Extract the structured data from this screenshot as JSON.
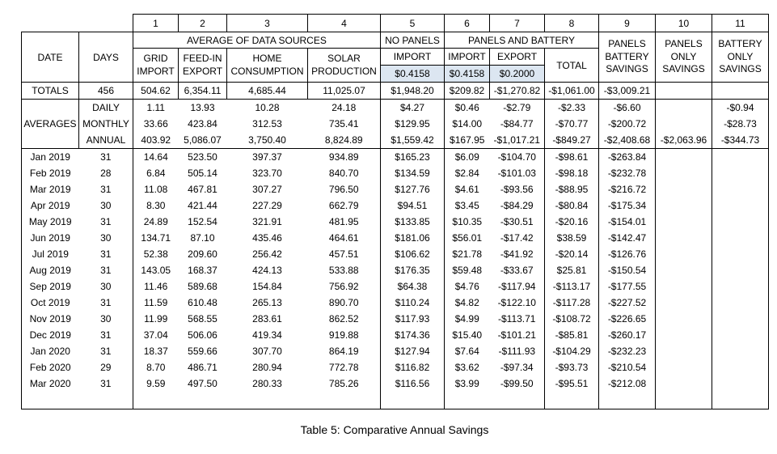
{
  "caption": "Table 5: Comparative Annual Savings",
  "colors": {
    "rate_highlight": "#dce6f1"
  },
  "columns": [
    "1",
    "2",
    "3",
    "4",
    "5",
    "6",
    "7",
    "8",
    "9",
    "10",
    "11"
  ],
  "header": {
    "date": "DATE",
    "days": "DAYS",
    "group_avg": "AVERAGE OF DATA SOURCES",
    "group_no_panels": "NO PANELS",
    "group_panels_battery": "PANELS AND BATTERY",
    "col_grid_import": "GRID\nIMPORT",
    "col_feed_in_export": "FEED-IN\nEXPORT",
    "col_home_consumption": "HOME\nCONSUMPTION",
    "col_solar_production": "SOLAR\nPRODUCTION",
    "col_import_no_panels": "IMPORT",
    "col_import_panels_battery": "IMPORT",
    "col_export_panels_battery": "EXPORT",
    "col_total": "TOTAL",
    "col_panels_battery_savings": "PANELS\nBATTERY\nSAVINGS",
    "col_panels_only_savings": "PANELS\nONLY\nSAVINGS",
    "col_battery_only_savings": "BATTERY\nONLY\nSAVINGS",
    "rate_import_no_panels": "$0.4158",
    "rate_import_panels_battery": "$0.4158",
    "rate_export_panels_battery": "$0.2000"
  },
  "totals": {
    "label": "TOTALS",
    "days": "456",
    "values": [
      "504.62",
      "6,354.11",
      "4,685.44",
      "11,025.07",
      "$1,948.20",
      "$209.82",
      "-$1,270.82",
      "-$1,061.00",
      "-$3,009.21",
      "",
      ""
    ]
  },
  "averages": {
    "label": "AVERAGES",
    "rows": [
      {
        "period": "DAILY",
        "values": [
          "1.11",
          "13.93",
          "10.28",
          "24.18",
          "$4.27",
          "$0.46",
          "-$2.79",
          "-$2.33",
          "-$6.60",
          "",
          "-$0.94"
        ]
      },
      {
        "period": "MONTHLY",
        "values": [
          "33.66",
          "423.84",
          "312.53",
          "735.41",
          "$129.95",
          "$14.00",
          "-$84.77",
          "-$70.77",
          "-$200.72",
          "",
          "-$28.73"
        ]
      },
      {
        "period": "ANNUAL",
        "values": [
          "403.92",
          "5,086.07",
          "3,750.40",
          "8,824.89",
          "$1,559.42",
          "$167.95",
          "-$1,017.21",
          "-$849.27",
          "-$2,408.68",
          "-$2,063.96",
          "-$344.73"
        ]
      }
    ]
  },
  "months": [
    {
      "date": "Jan 2019",
      "days": "31",
      "values": [
        "14.64",
        "523.50",
        "397.37",
        "934.89",
        "$165.23",
        "$6.09",
        "-$104.70",
        "-$98.61",
        "-$263.84"
      ]
    },
    {
      "date": "Feb 2019",
      "days": "28",
      "values": [
        "6.84",
        "505.14",
        "323.70",
        "840.70",
        "$134.59",
        "$2.84",
        "-$101.03",
        "-$98.18",
        "-$232.78"
      ]
    },
    {
      "date": "Mar 2019",
      "days": "31",
      "values": [
        "11.08",
        "467.81",
        "307.27",
        "796.50",
        "$127.76",
        "$4.61",
        "-$93.56",
        "-$88.95",
        "-$216.72"
      ]
    },
    {
      "date": "Apr 2019",
      "days": "30",
      "values": [
        "8.30",
        "421.44",
        "227.29",
        "662.79",
        "$94.51",
        "$3.45",
        "-$84.29",
        "-$80.84",
        "-$175.34"
      ]
    },
    {
      "date": "May 2019",
      "days": "31",
      "values": [
        "24.89",
        "152.54",
        "321.91",
        "481.95",
        "$133.85",
        "$10.35",
        "-$30.51",
        "-$20.16",
        "-$154.01"
      ]
    },
    {
      "date": "Jun 2019",
      "days": "30",
      "values": [
        "134.71",
        "87.10",
        "435.46",
        "464.61",
        "$181.06",
        "$56.01",
        "-$17.42",
        "$38.59",
        "-$142.47"
      ]
    },
    {
      "date": "Jul 2019",
      "days": "31",
      "values": [
        "52.38",
        "209.60",
        "256.42",
        "457.51",
        "$106.62",
        "$21.78",
        "-$41.92",
        "-$20.14",
        "-$126.76"
      ]
    },
    {
      "date": "Aug 2019",
      "days": "31",
      "values": [
        "143.05",
        "168.37",
        "424.13",
        "533.88",
        "$176.35",
        "$59.48",
        "-$33.67",
        "$25.81",
        "-$150.54"
      ]
    },
    {
      "date": "Sep 2019",
      "days": "30",
      "values": [
        "11.46",
        "589.68",
        "154.84",
        "756.92",
        "$64.38",
        "$4.76",
        "-$117.94",
        "-$113.17",
        "-$177.55"
      ]
    },
    {
      "date": "Oct 2019",
      "days": "31",
      "values": [
        "11.59",
        "610.48",
        "265.13",
        "890.70",
        "$110.24",
        "$4.82",
        "-$122.10",
        "-$117.28",
        "-$227.52"
      ]
    },
    {
      "date": "Nov 2019",
      "days": "30",
      "values": [
        "11.99",
        "568.55",
        "283.61",
        "862.52",
        "$117.93",
        "$4.99",
        "-$113.71",
        "-$108.72",
        "-$226.65"
      ]
    },
    {
      "date": "Dec 2019",
      "days": "31",
      "values": [
        "37.04",
        "506.06",
        "419.34",
        "919.88",
        "$174.36",
        "$15.40",
        "-$101.21",
        "-$85.81",
        "-$260.17"
      ]
    },
    {
      "date": "Jan 2020",
      "days": "31",
      "values": [
        "18.37",
        "559.66",
        "307.70",
        "864.19",
        "$127.94",
        "$7.64",
        "-$111.93",
        "-$104.29",
        "-$232.23"
      ]
    },
    {
      "date": "Feb 2020",
      "days": "29",
      "values": [
        "8.70",
        "486.71",
        "280.94",
        "772.78",
        "$116.82",
        "$3.62",
        "-$97.34",
        "-$93.73",
        "-$210.54"
      ]
    },
    {
      "date": "Mar 2020",
      "days": "31",
      "values": [
        "9.59",
        "497.50",
        "280.33",
        "785.26",
        "$116.56",
        "$3.99",
        "-$99.50",
        "-$95.51",
        "-$212.08"
      ]
    }
  ]
}
